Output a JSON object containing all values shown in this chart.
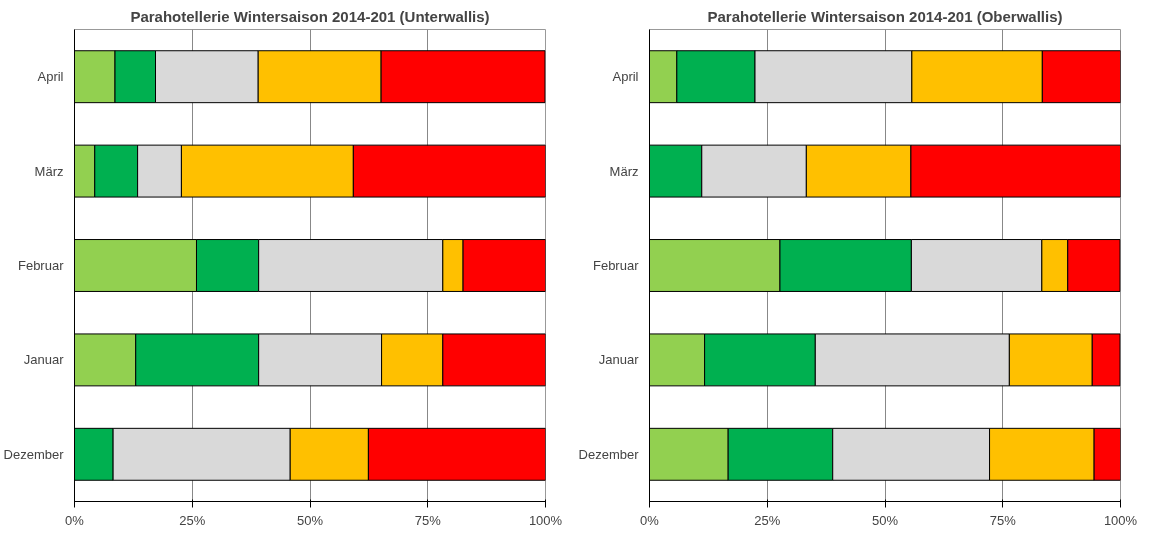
{
  "chart_data": [
    {
      "type": "bar",
      "orientation": "horizontal",
      "stacked": true,
      "title": "Parahotellerie Wintersaison 2014-201 (Unterwallis)",
      "categories": [
        "April",
        "März",
        "Februar",
        "Januar",
        "Dezember"
      ],
      "series": [
        {
          "color": "#92d050",
          "values": [
            8.6,
            4.3,
            25.9,
            13.0,
            0
          ]
        },
        {
          "color": "#00b050",
          "values": [
            8.6,
            9.1,
            13.2,
            26.1,
            8.2
          ]
        },
        {
          "color": "#d9d9d9",
          "values": [
            21.8,
            9.3,
            39.1,
            26.1,
            37.6
          ]
        },
        {
          "color": "#ffc000",
          "values": [
            26.1,
            36.5,
            4.3,
            13.0,
            16.6
          ]
        },
        {
          "color": "#ff0000",
          "values": [
            34.8,
            40.8,
            17.5,
            21.8,
            37.6
          ]
        }
      ],
      "xlim": [
        0,
        100
      ],
      "xticks": [
        {
          "value": 0,
          "label": "0%"
        },
        {
          "value": 25,
          "label": "25%"
        },
        {
          "value": 50,
          "label": "50%"
        },
        {
          "value": 75,
          "label": "75%"
        },
        {
          "value": 100,
          "label": "100%"
        }
      ],
      "grid": "x"
    },
    {
      "type": "bar",
      "orientation": "horizontal",
      "stacked": true,
      "title": "Parahotellerie Wintersaison 2014-201 (Oberwallis)",
      "categories": [
        "April",
        "März",
        "Februar",
        "Januar",
        "Dezember"
      ],
      "series": [
        {
          "color": "#92d050",
          "values": [
            5.8,
            0,
            27.7,
            11.7,
            16.7
          ]
        },
        {
          "color": "#00b050",
          "values": [
            16.6,
            11.1,
            27.9,
            23.5,
            22.2
          ]
        },
        {
          "color": "#d9d9d9",
          "values": [
            33.3,
            22.2,
            27.7,
            41.2,
            33.3
          ]
        },
        {
          "color": "#ffc000",
          "values": [
            27.7,
            22.2,
            5.5,
            17.6,
            22.2
          ]
        },
        {
          "color": "#ff0000",
          "values": [
            16.6,
            44.5,
            11.1,
            5.9,
            5.6
          ]
        }
      ],
      "xlim": [
        0,
        100
      ],
      "xticks": [
        {
          "value": 0,
          "label": "0%"
        },
        {
          "value": 25,
          "label": "25%"
        },
        {
          "value": 50,
          "label": "50%"
        },
        {
          "value": 75,
          "label": "75%"
        },
        {
          "value": 100,
          "label": "100%"
        }
      ],
      "grid": "x"
    }
  ]
}
